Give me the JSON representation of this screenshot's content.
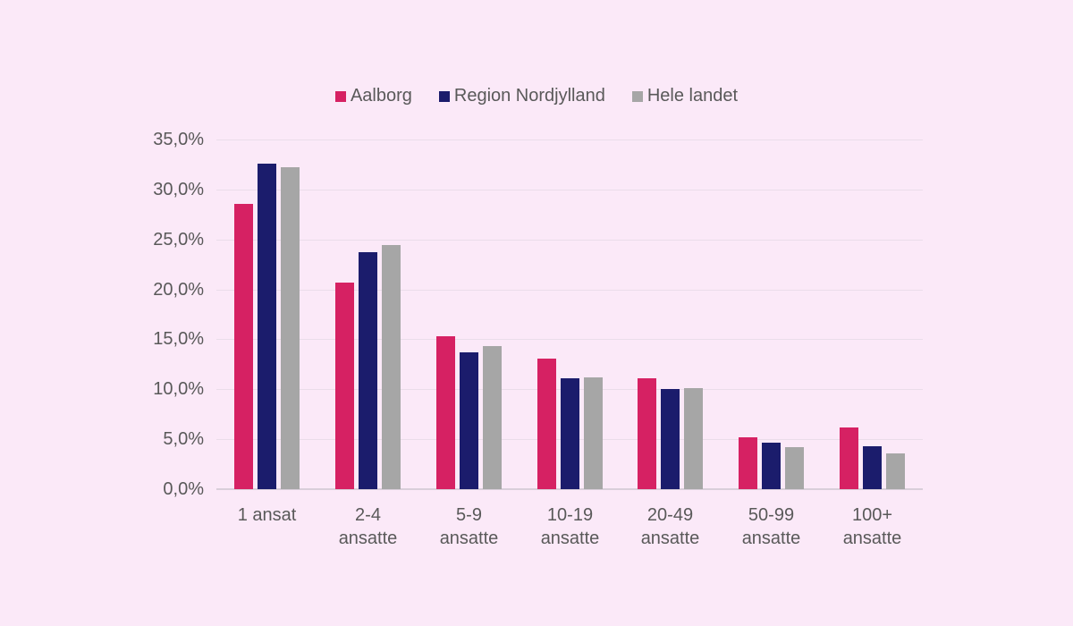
{
  "theme": {
    "background": "#FBE9F8",
    "text_color": "#595959",
    "gridline_color": "#EADDEA",
    "axisline_color": "#D9CEDA"
  },
  "chart_data": {
    "type": "bar",
    "title": "",
    "xlabel": "",
    "ylabel": "",
    "categories": [
      "1 ansat",
      "2-4 ansatte",
      "5-9 ansatte",
      "10-19 ansatte",
      "20-49 ansatte",
      "50-99 ansatte",
      "100+ ansatte"
    ],
    "x_tick_lines": [
      [
        "1 ansat"
      ],
      [
        "2-4",
        "ansatte"
      ],
      [
        "5-9",
        "ansatte"
      ],
      [
        "10-19",
        "ansatte"
      ],
      [
        "20-49",
        "ansatte"
      ],
      [
        "50-99",
        "ansatte"
      ],
      [
        "100+",
        "ansatte"
      ]
    ],
    "series": [
      {
        "name": "Aalborg",
        "color": "#D62163",
        "values": [
          28.6,
          20.7,
          15.3,
          13.1,
          11.1,
          5.2,
          6.2
        ]
      },
      {
        "name": "Region Nordjylland",
        "color": "#1B1C6C",
        "values": [
          32.6,
          23.7,
          13.7,
          11.1,
          10.0,
          4.7,
          4.3
        ]
      },
      {
        "name": "Hele landet",
        "color": "#A6A6A6",
        "values": [
          32.2,
          24.4,
          14.3,
          11.2,
          10.1,
          4.2,
          3.6
        ]
      }
    ],
    "ylim": [
      0,
      35
    ],
    "ytick_step": 5,
    "ytick_labels": [
      "0,0%",
      "5,0%",
      "10,0%",
      "15,0%",
      "20,0%",
      "25,0%",
      "30,0%",
      "35,0%"
    ],
    "grid": true,
    "legend_position": "top-center"
  }
}
